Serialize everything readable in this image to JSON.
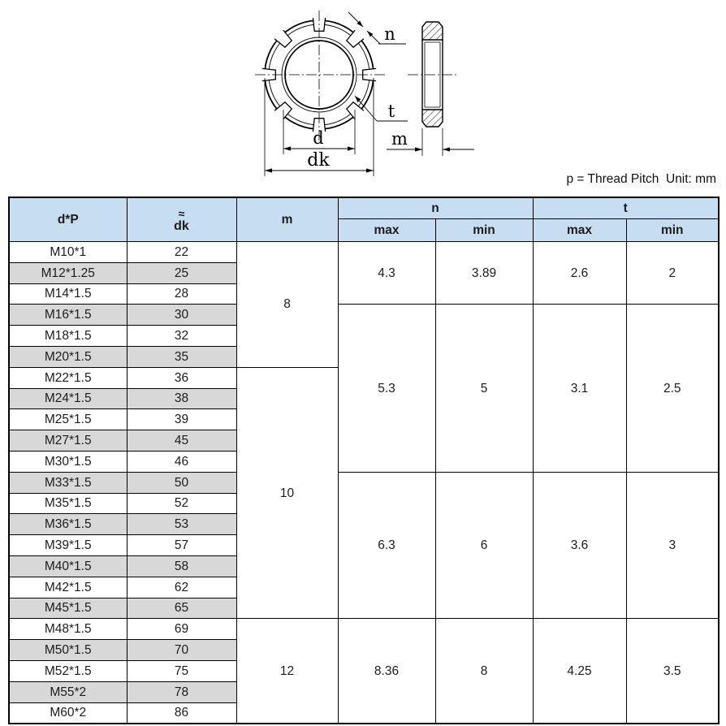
{
  "note": "p = Thread Pitch  Unit: mm",
  "drawing": {
    "n_label": "n",
    "t_label": "t",
    "d_label": "d",
    "dk_label": "dk",
    "m_label": "m"
  },
  "colors": {
    "header_bg": "#c7ddf1",
    "stripe_bg": "#d8d8d8",
    "border": "#000000"
  },
  "table": {
    "header": {
      "col_dp": "d*P",
      "col_dk_approx": "≈",
      "col_dk": "dk",
      "col_m": "m",
      "col_n": "n",
      "col_t": "t",
      "sub_max": "max",
      "sub_min": "min"
    },
    "rows": [
      {
        "dp": "M10*1",
        "dk": "22",
        "shaded": false
      },
      {
        "dp": "M12*1.25",
        "dk": "25",
        "shaded": true
      },
      {
        "dp": "M14*1.5",
        "dk": "28",
        "shaded": false
      },
      {
        "dp": "M16*1.5",
        "dk": "30",
        "shaded": true
      },
      {
        "dp": "M18*1.5",
        "dk": "32",
        "shaded": false
      },
      {
        "dp": "M20*1.5",
        "dk": "35",
        "shaded": true
      },
      {
        "dp": "M22*1.5",
        "dk": "36",
        "shaded": false
      },
      {
        "dp": "M24*1.5",
        "dk": "38",
        "shaded": true
      },
      {
        "dp": "M25*1.5",
        "dk": "39",
        "shaded": false
      },
      {
        "dp": "M27*1.5",
        "dk": "45",
        "shaded": true
      },
      {
        "dp": "M30*1.5",
        "dk": "46",
        "shaded": false
      },
      {
        "dp": "M33*1.5",
        "dk": "50",
        "shaded": true
      },
      {
        "dp": "M35*1.5",
        "dk": "52",
        "shaded": false
      },
      {
        "dp": "M36*1.5",
        "dk": "53",
        "shaded": true
      },
      {
        "dp": "M39*1.5",
        "dk": "57",
        "shaded": false
      },
      {
        "dp": "M40*1.5",
        "dk": "58",
        "shaded": true
      },
      {
        "dp": "M42*1.5",
        "dk": "62",
        "shaded": false
      },
      {
        "dp": "M45*1.5",
        "dk": "65",
        "shaded": true
      },
      {
        "dp": "M48*1.5",
        "dk": "69",
        "shaded": false
      },
      {
        "dp": "M50*1.5",
        "dk": "70",
        "shaded": true
      },
      {
        "dp": "M52*1.5",
        "dk": "75",
        "shaded": false
      },
      {
        "dp": "M55*2",
        "dk": "78",
        "shaded": true
      },
      {
        "dp": "M60*2",
        "dk": "86",
        "shaded": false
      }
    ],
    "m_groups": [
      {
        "start": 0,
        "span": 6,
        "value": "8"
      },
      {
        "start": 6,
        "span": 12,
        "value": "10"
      },
      {
        "start": 18,
        "span": 5,
        "value": "12"
      }
    ],
    "nt_groups": [
      {
        "start": 0,
        "span": 3,
        "n_max": "4.3",
        "n_min": "3.89",
        "t_max": "2.6",
        "t_min": "2"
      },
      {
        "start": 3,
        "span": 8,
        "n_max": "5.3",
        "n_min": "5",
        "t_max": "3.1",
        "t_min": "2.5"
      },
      {
        "start": 11,
        "span": 7,
        "n_max": "6.3",
        "n_min": "6",
        "t_max": "3.6",
        "t_min": "3"
      },
      {
        "start": 18,
        "span": 5,
        "n_max": "8.36",
        "n_min": "8",
        "t_max": "4.25",
        "t_min": "3.5"
      }
    ]
  }
}
